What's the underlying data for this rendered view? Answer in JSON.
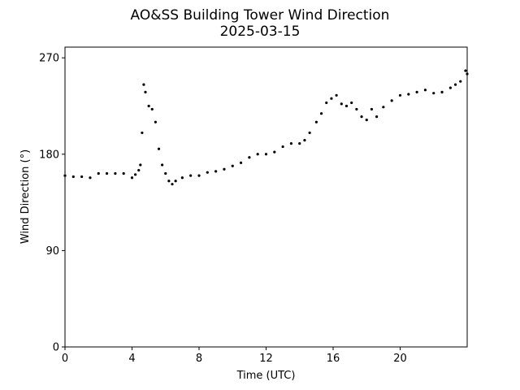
{
  "chart_data": {
    "type": "scatter",
    "title": "AO&SS Building Tower Wind Direction",
    "subtitle": "2025-03-15",
    "xlabel": "Time (UTC)",
    "ylabel": "Wind Direction (°)",
    "xlim": [
      0,
      24
    ],
    "ylim": [
      0,
      280
    ],
    "xticks": [
      0,
      4,
      8,
      12,
      16,
      20
    ],
    "yticks": [
      0,
      90,
      180,
      270
    ],
    "grid": false,
    "marker_color": "#000000",
    "series": [
      {
        "x": [
          0.0,
          0.5,
          1.0,
          1.5,
          2.0,
          2.5,
          3.0,
          3.5,
          4.0,
          4.2,
          4.4,
          4.5,
          4.6,
          4.7,
          4.8,
          5.0,
          5.2,
          5.4,
          5.6,
          5.8,
          6.0,
          6.2,
          6.4,
          6.6,
          7.0,
          7.5,
          8.0,
          8.5,
          9.0,
          9.5,
          10.0,
          10.5,
          11.0,
          11.5,
          12.0,
          12.5,
          13.0,
          13.5,
          14.0,
          14.3,
          14.6,
          15.0,
          15.3,
          15.6,
          15.9,
          16.2,
          16.5,
          16.8,
          17.1,
          17.4,
          17.7,
          18.0,
          18.3,
          18.6,
          19.0,
          19.5,
          20.0,
          20.5,
          21.0,
          21.5,
          22.0,
          22.5,
          23.0,
          23.3,
          23.6,
          23.9,
          24.0
        ],
        "y": [
          160,
          159,
          159,
          158,
          162,
          162,
          162,
          162,
          158,
          161,
          165,
          170,
          200,
          245,
          238,
          225,
          222,
          210,
          185,
          170,
          162,
          155,
          152,
          155,
          158,
          160,
          160,
          163,
          164,
          166,
          169,
          172,
          177,
          180,
          180,
          182,
          187,
          190,
          190,
          193,
          200,
          210,
          218,
          228,
          232,
          235,
          227,
          225,
          228,
          222,
          215,
          212,
          222,
          215,
          224,
          230,
          235,
          236,
          238,
          240,
          237,
          238,
          242,
          245,
          248,
          258,
          255
        ]
      }
    ]
  }
}
